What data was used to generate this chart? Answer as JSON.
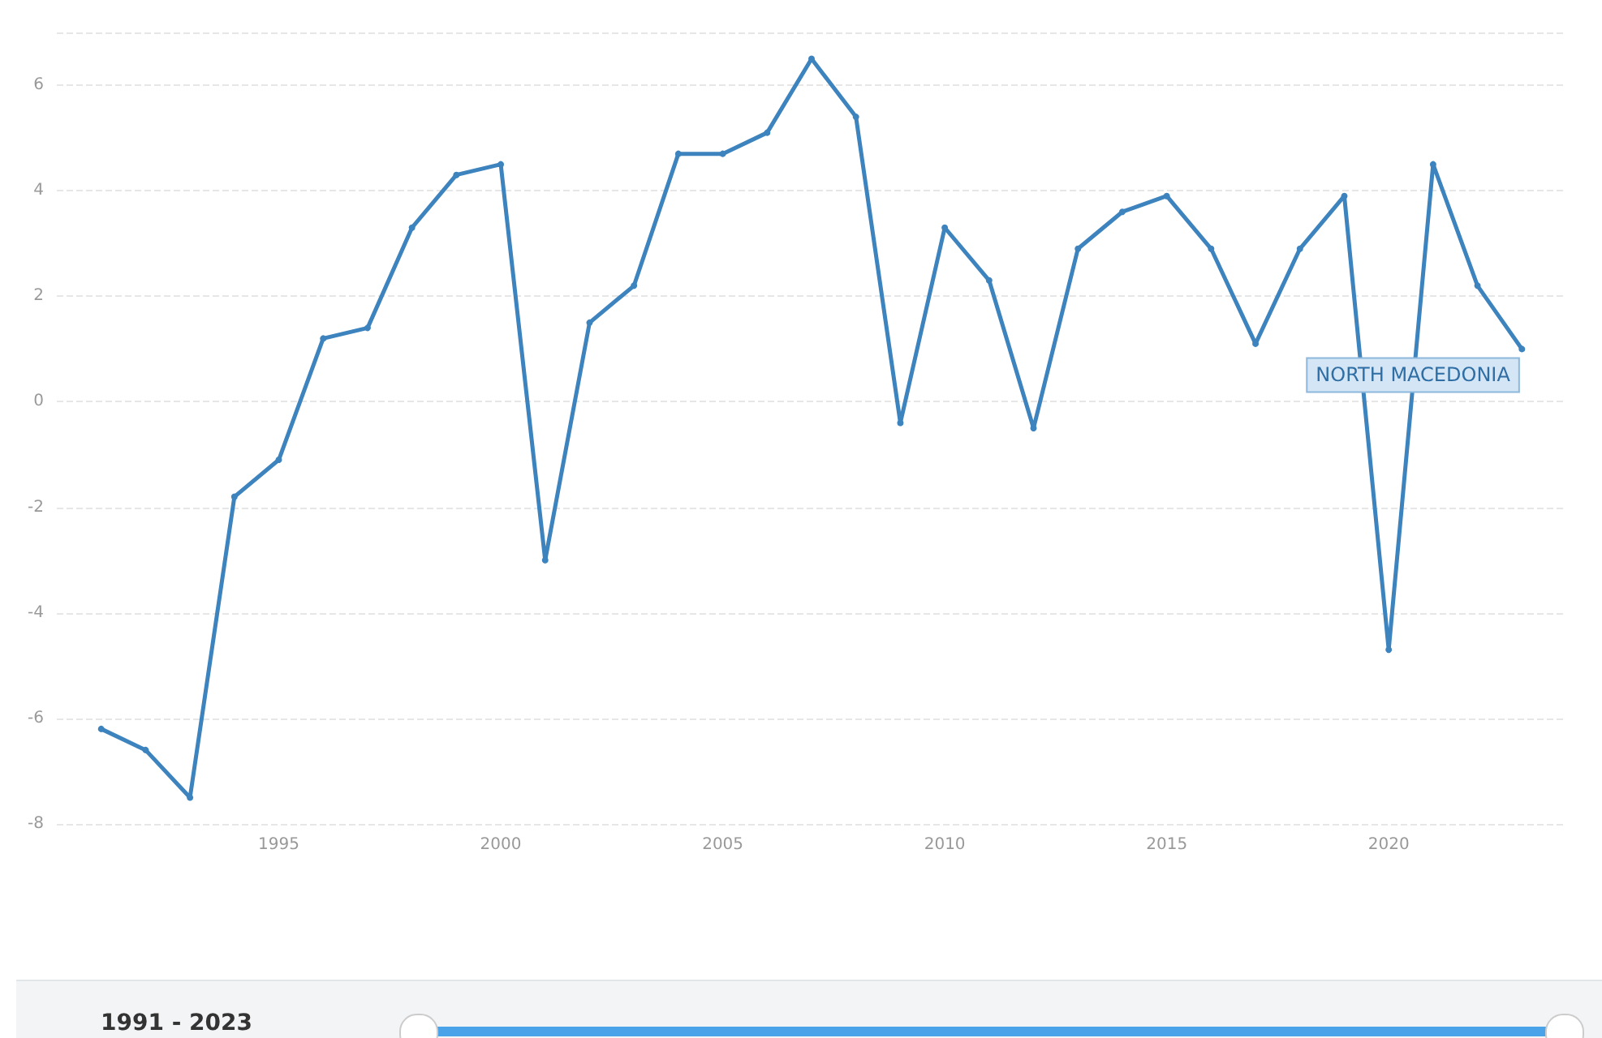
{
  "chart_data": {
    "type": "line",
    "x": [
      1991,
      1992,
      1993,
      1994,
      1995,
      1996,
      1997,
      1998,
      1999,
      2000,
      2001,
      2002,
      2003,
      2004,
      2005,
      2006,
      2007,
      2008,
      2009,
      2010,
      2011,
      2012,
      2013,
      2014,
      2015,
      2016,
      2017,
      2018,
      2019,
      2020,
      2021,
      2022,
      2023
    ],
    "series": [
      {
        "name": "NORTH MACEDONIA",
        "color": "#3d83be",
        "values": [
          -6.2,
          -6.6,
          -7.5,
          -1.8,
          -1.1,
          1.2,
          1.4,
          3.3,
          4.3,
          4.5,
          -3.0,
          1.5,
          2.2,
          4.7,
          4.7,
          5.1,
          6.5,
          5.4,
          -0.4,
          3.3,
          2.3,
          -0.5,
          2.9,
          3.6,
          3.9,
          2.9,
          1.1,
          2.9,
          3.9,
          -4.7,
          4.5,
          2.2,
          1.0
        ]
      }
    ],
    "xlim": [
      1990,
      2024
    ],
    "xticks": [
      1995,
      2000,
      2005,
      2010,
      2015,
      2020
    ],
    "ylim": [
      -8,
      7
    ],
    "yticks": [
      -8,
      -6,
      -4,
      -2,
      0,
      2,
      4,
      6,
      {
        "value": 7,
        "label": null
      }
    ],
    "grid": "y",
    "marker": "circle",
    "line_style": "solid",
    "legend": false,
    "annotations": [
      "1991 - 2023"
    ]
  }
}
